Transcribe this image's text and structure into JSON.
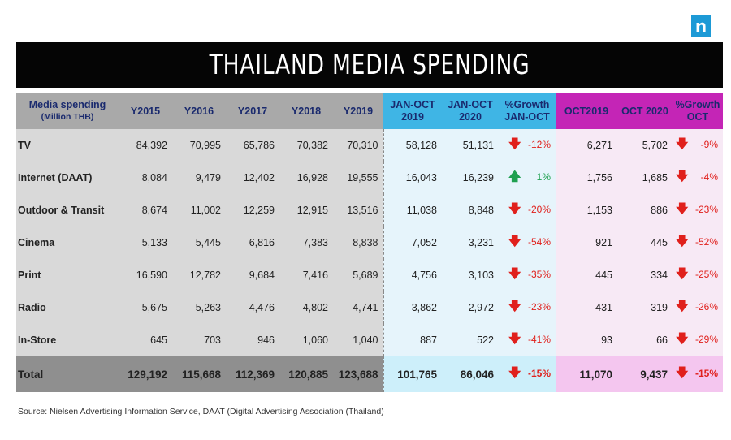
{
  "logo": {
    "letter": "n"
  },
  "title": "THAILAND MEDIA SPENDING",
  "headers": {
    "media_l1": "Media spending",
    "media_l2": "(Million THB)",
    "y2015": "Y2015",
    "y2016": "Y2016",
    "y2017": "Y2017",
    "y2018": "Y2018",
    "y2019": "Y2019",
    "janoct2019_l1": "JAN-OCT",
    "janoct2019_l2": "2019",
    "janoct2020_l1": "JAN-OCT",
    "janoct2020_l2": "2020",
    "growth_janoct_l1": "%Growth",
    "growth_janoct_l2": "JAN-OCT",
    "oct2019": "OCT2019",
    "oct2020": "OCT 2020",
    "growth_oct_l1": "%Growth",
    "growth_oct_l2": "OCT"
  },
  "rows": [
    {
      "label": "TV",
      "y2015": "84,392",
      "y2016": "70,995",
      "y2017": "65,786",
      "y2018": "70,382",
      "y2019": "70,310",
      "jo2019": "58,128",
      "jo2020": "51,131",
      "jo_dir": "down",
      "jo_growth": "-12%",
      "oct2019": "6,271",
      "oct2020": "5,702",
      "oct_dir": "down",
      "oct_growth": "-9%"
    },
    {
      "label": "Internet (DAAT)",
      "y2015": "8,084",
      "y2016": "9,479",
      "y2017": "12,402",
      "y2018": "16,928",
      "y2019": "19,555",
      "jo2019": "16,043",
      "jo2020": "16,239",
      "jo_dir": "up",
      "jo_growth": "1%",
      "oct2019": "1,756",
      "oct2020": "1,685",
      "oct_dir": "down",
      "oct_growth": "-4%"
    },
    {
      "label": "Outdoor & Transit",
      "y2015": "8,674",
      "y2016": "11,002",
      "y2017": "12,259",
      "y2018": "12,915",
      "y2019": "13,516",
      "jo2019": "11,038",
      "jo2020": "8,848",
      "jo_dir": "down",
      "jo_growth": "-20%",
      "oct2019": "1,153",
      "oct2020": "886",
      "oct_dir": "down",
      "oct_growth": "-23%"
    },
    {
      "label": "Cinema",
      "y2015": "5,133",
      "y2016": "5,445",
      "y2017": "6,816",
      "y2018": "7,383",
      "y2019": "8,838",
      "jo2019": "7,052",
      "jo2020": "3,231",
      "jo_dir": "down",
      "jo_growth": "-54%",
      "oct2019": "921",
      "oct2020": "445",
      "oct_dir": "down",
      "oct_growth": "-52%"
    },
    {
      "label": "Print",
      "y2015": "16,590",
      "y2016": "12,782",
      "y2017": "9,684",
      "y2018": "7,416",
      "y2019": "5,689",
      "jo2019": "4,756",
      "jo2020": "3,103",
      "jo_dir": "down",
      "jo_growth": "-35%",
      "oct2019": "445",
      "oct2020": "334",
      "oct_dir": "down",
      "oct_growth": "-25%"
    },
    {
      "label": "Radio",
      "y2015": "5,675",
      "y2016": "5,263",
      "y2017": "4,476",
      "y2018": "4,802",
      "y2019": "4,741",
      "jo2019": "3,862",
      "jo2020": "2,972",
      "jo_dir": "down",
      "jo_growth": "-23%",
      "oct2019": "431",
      "oct2020": "319",
      "oct_dir": "down",
      "oct_growth": "-26%"
    },
    {
      "label": "In-Store",
      "y2015": "645",
      "y2016": "703",
      "y2017": "946",
      "y2018": "1,060",
      "y2019": "1,040",
      "jo2019": "887",
      "jo2020": "522",
      "jo_dir": "down",
      "jo_growth": "-41%",
      "oct2019": "93",
      "oct2020": "66",
      "oct_dir": "down",
      "oct_growth": "-29%"
    }
  ],
  "total": {
    "label": "Total",
    "y2015": "129,192",
    "y2016": "115,668",
    "y2017": "112,369",
    "y2018": "120,885",
    "y2019": "123,688",
    "jo2019": "101,765",
    "jo2020": "86,046",
    "jo_dir": "down",
    "jo_growth": "-15%",
    "oct2019": "11,070",
    "oct2020": "9,437",
    "oct_dir": "down",
    "oct_growth": "-15%"
  },
  "arrows": {
    "down": "🡇",
    "up": "🡅"
  },
  "source": "Source: Nielsen Advertising Information Service, DAAT (Digital Advertising Association (Thailand)"
}
